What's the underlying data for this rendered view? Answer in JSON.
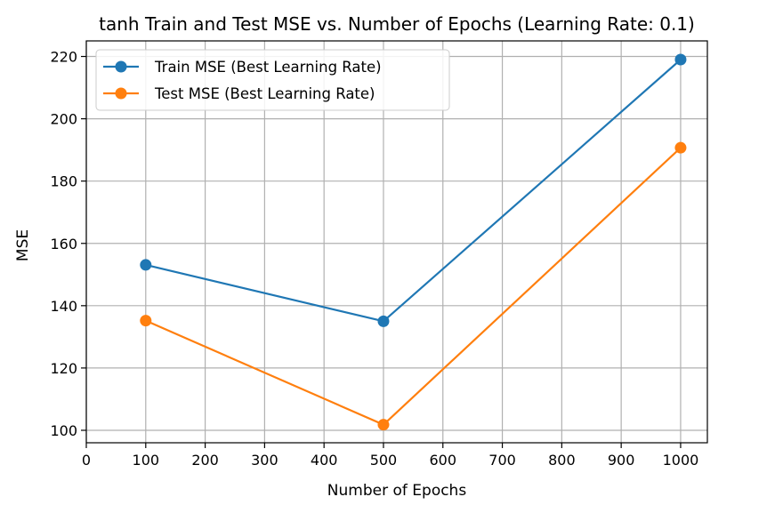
{
  "chart_data": {
    "type": "line",
    "title": "tanh Train and Test MSE vs. Number of Epochs (Learning Rate: 0.1)",
    "xlabel": "Number of Epochs",
    "ylabel": "MSE",
    "x": [
      100,
      500,
      1000
    ],
    "series": [
      {
        "name": "Train MSE (Best Learning Rate)",
        "values": [
          153.1,
          135.0,
          219.0
        ],
        "color": "#1f77b4"
      },
      {
        "name": "Test MSE (Best Learning Rate)",
        "values": [
          135.2,
          101.8,
          190.7
        ],
        "color": "#ff7f0e"
      }
    ],
    "xlim": [
      0,
      1045
    ],
    "ylim": [
      96,
      225
    ],
    "xticks": [
      0,
      100,
      200,
      300,
      400,
      500,
      600,
      700,
      800,
      900,
      1000
    ],
    "yticks": [
      100,
      120,
      140,
      160,
      180,
      200,
      220
    ],
    "grid": true,
    "legend": "upper-left",
    "markers": "circle"
  }
}
